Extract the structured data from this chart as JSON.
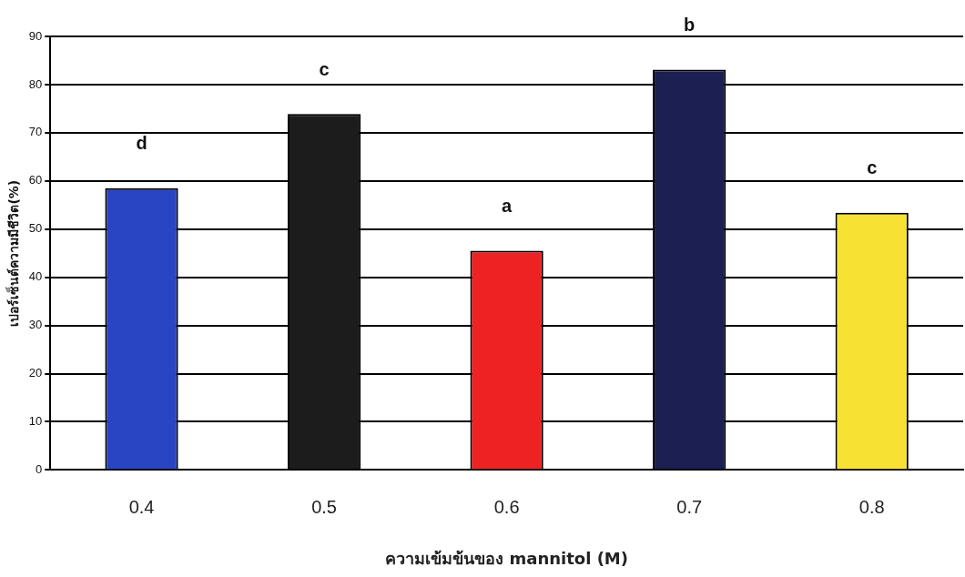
{
  "chart_data": {
    "type": "bar",
    "categories": [
      "0.4",
      "0.5",
      "0.6",
      "0.7",
      "0.8"
    ],
    "values": [
      58.5,
      73.9,
      45.5,
      83.1,
      53.4
    ],
    "colors": [
      "#2a45c4",
      "#1c1c1c",
      "#ee2222",
      "#1c1f52",
      "#f7e233"
    ],
    "xlabel": "ความเข้มข้นของ mannitol (M)",
    "ylabel": "เปอร์เซ็นต์ความมีชีวิต(%)",
    "ylim": [
      0,
      90
    ],
    "yticks": [
      0,
      10,
      20,
      30,
      40,
      50,
      60,
      70,
      80,
      90
    ],
    "grid": "y",
    "legend": false,
    "annotations": [
      {
        "text": "d",
        "x": "0.4",
        "y": 58.5
      },
      {
        "text": "c",
        "x": "0.5",
        "y": 73.9
      },
      {
        "text": "a",
        "x": "0.6",
        "y": 45.5
      },
      {
        "text": "b",
        "x": "0.7",
        "y": 83.1
      },
      {
        "text": "c",
        "x": "0.8",
        "y": 53.4
      }
    ]
  }
}
